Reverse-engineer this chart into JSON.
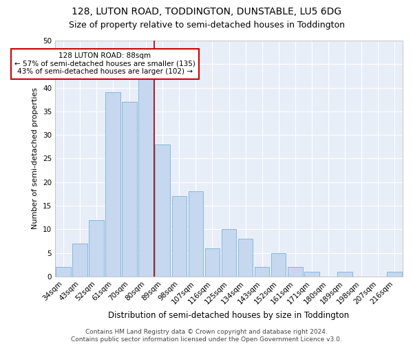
{
  "title": "128, LUTON ROAD, TODDINGTON, DUNSTABLE, LU5 6DG",
  "subtitle": "Size of property relative to semi-detached houses in Toddington",
  "xlabel": "Distribution of semi-detached houses by size in Toddington",
  "ylabel": "Number of semi-detached properties",
  "categories": [
    "34sqm",
    "43sqm",
    "52sqm",
    "61sqm",
    "70sqm",
    "80sqm",
    "89sqm",
    "98sqm",
    "107sqm",
    "116sqm",
    "125sqm",
    "134sqm",
    "143sqm",
    "152sqm",
    "161sqm",
    "171sqm",
    "180sqm",
    "189sqm",
    "198sqm",
    "207sqm",
    "216sqm"
  ],
  "values": [
    2,
    7,
    12,
    39,
    37,
    42,
    28,
    17,
    18,
    6,
    10,
    8,
    2,
    5,
    2,
    1,
    0,
    1,
    0,
    0,
    1
  ],
  "bar_color": "#c5d8f0",
  "bar_edge_color": "#7aafd4",
  "property_label": "128 LUTON ROAD: 88sqm",
  "smaller_text": "← 57% of semi-detached houses are smaller (135)",
  "larger_text": "43% of semi-detached houses are larger (102) →",
  "vline_color": "#990000",
  "annotation_box_color": "#ffffff",
  "annotation_box_edge_color": "#cc0000",
  "ylim": [
    0,
    50
  ],
  "yticks": [
    0,
    5,
    10,
    15,
    20,
    25,
    30,
    35,
    40,
    45,
    50
  ],
  "bg_color": "#e8eef8",
  "footer_line1": "Contains HM Land Registry data © Crown copyright and database right 2024.",
  "footer_line2": "Contains public sector information licensed under the Open Government Licence v3.0.",
  "title_fontsize": 10,
  "subtitle_fontsize": 9,
  "xlabel_fontsize": 8.5,
  "ylabel_fontsize": 8,
  "tick_fontsize": 7.5,
  "footer_fontsize": 6.5,
  "annotation_fontsize": 7.5
}
